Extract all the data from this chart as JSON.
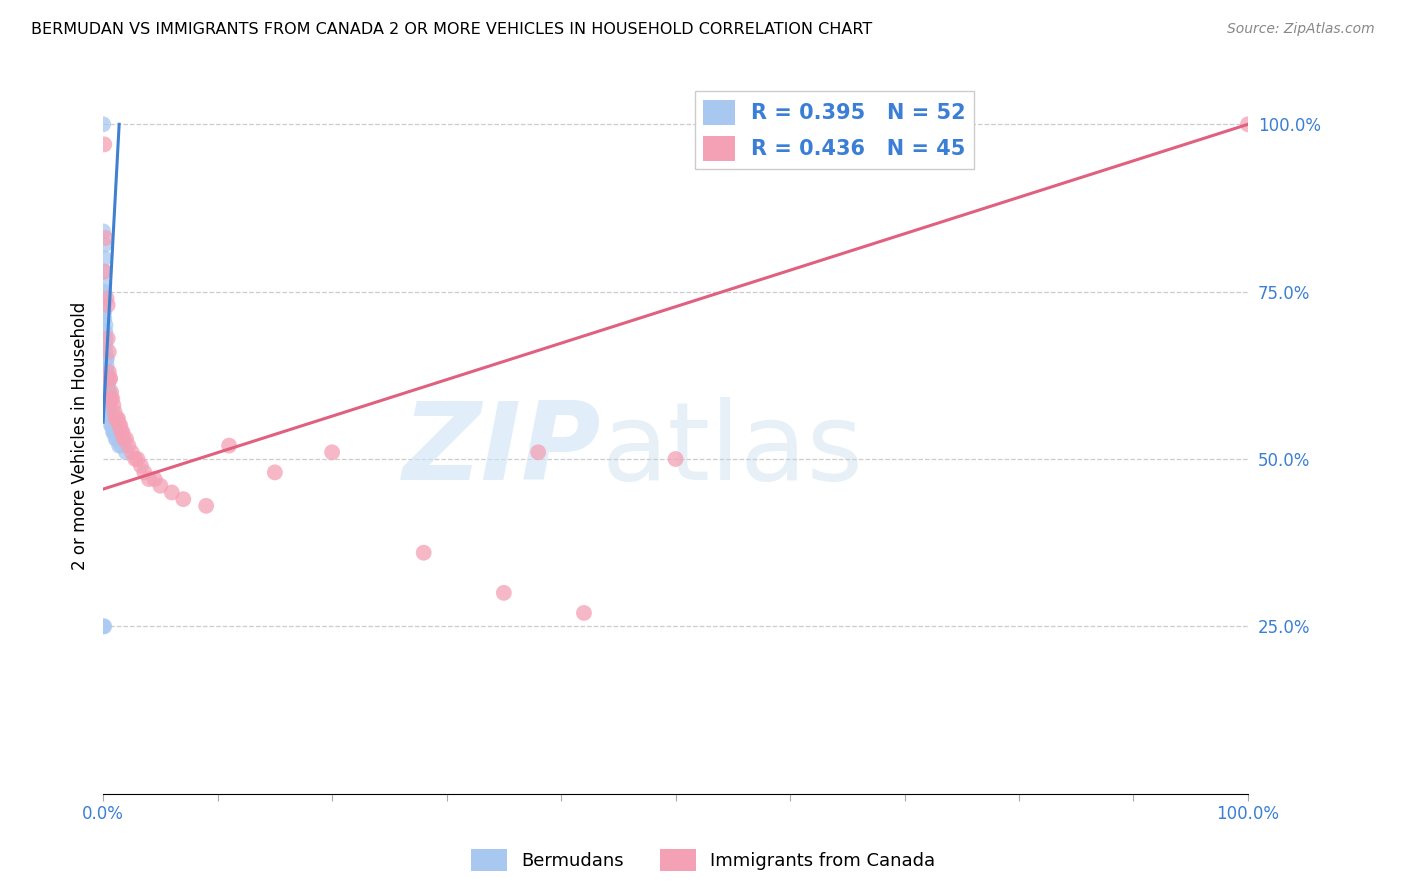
{
  "title": "BERMUDAN VS IMMIGRANTS FROM CANADA 2 OR MORE VEHICLES IN HOUSEHOLD CORRELATION CHART",
  "source": "Source: ZipAtlas.com",
  "ylabel": "2 or more Vehicles in Household",
  "legend_label1": "Bermudans",
  "legend_label2": "Immigrants from Canada",
  "R1": 0.395,
  "N1": 52,
  "R2": 0.436,
  "N2": 45,
  "color_blue": "#A8C8F0",
  "color_pink": "#F4A0B5",
  "line_color_blue": "#4080D0",
  "line_color_pink": "#E06080",
  "blue_x": [
    0.0,
    0.0,
    0.001,
    0.001,
    0.001,
    0.001,
    0.001,
    0.001,
    0.001,
    0.001,
    0.001,
    0.002,
    0.002,
    0.002,
    0.002,
    0.002,
    0.003,
    0.003,
    0.003,
    0.003,
    0.003,
    0.004,
    0.004,
    0.004,
    0.004,
    0.004,
    0.004,
    0.005,
    0.005,
    0.005,
    0.005,
    0.005,
    0.005,
    0.005,
    0.005,
    0.006,
    0.006,
    0.006,
    0.007,
    0.007,
    0.008,
    0.008,
    0.009,
    0.009,
    0.01,
    0.011,
    0.012,
    0.014,
    0.016,
    0.02,
    0.0,
    0.001
  ],
  "blue_y": [
    1.0,
    0.84,
    0.82,
    0.8,
    0.78,
    0.76,
    0.75,
    0.74,
    0.73,
    0.72,
    0.71,
    0.7,
    0.69,
    0.68,
    0.67,
    0.66,
    0.65,
    0.65,
    0.64,
    0.63,
    0.63,
    0.62,
    0.62,
    0.61,
    0.61,
    0.6,
    0.6,
    0.6,
    0.6,
    0.59,
    0.59,
    0.58,
    0.58,
    0.57,
    0.57,
    0.57,
    0.57,
    0.56,
    0.56,
    0.55,
    0.55,
    0.55,
    0.54,
    0.54,
    0.54,
    0.53,
    0.53,
    0.52,
    0.52,
    0.51,
    0.25,
    0.25
  ],
  "pink_x": [
    0.001,
    0.001,
    0.002,
    0.003,
    0.004,
    0.004,
    0.005,
    0.005,
    0.006,
    0.006,
    0.007,
    0.007,
    0.008,
    0.009,
    0.01,
    0.011,
    0.012,
    0.013,
    0.014,
    0.015,
    0.016,
    0.017,
    0.018,
    0.02,
    0.022,
    0.025,
    0.028,
    0.03,
    0.033,
    0.036,
    0.04,
    0.045,
    0.05,
    0.06,
    0.07,
    0.09,
    0.11,
    0.15,
    0.2,
    0.28,
    0.35,
    0.42,
    0.5,
    0.38,
    1.0
  ],
  "pink_y": [
    0.97,
    0.78,
    0.83,
    0.74,
    0.73,
    0.68,
    0.66,
    0.63,
    0.62,
    0.62,
    0.6,
    0.59,
    0.59,
    0.58,
    0.57,
    0.56,
    0.56,
    0.56,
    0.55,
    0.55,
    0.54,
    0.54,
    0.53,
    0.53,
    0.52,
    0.51,
    0.5,
    0.5,
    0.49,
    0.48,
    0.47,
    0.47,
    0.46,
    0.45,
    0.44,
    0.43,
    0.52,
    0.48,
    0.51,
    0.36,
    0.3,
    0.27,
    0.5,
    0.51,
    1.0
  ],
  "blue_line_x0": 0.0,
  "blue_line_y0": 0.555,
  "blue_line_x1": 0.014,
  "blue_line_y1": 1.0,
  "pink_line_x0": 0.0,
  "pink_line_y0": 0.455,
  "pink_line_x1": 1.0,
  "pink_line_y1": 1.0,
  "xlim": [
    0.0,
    1.0
  ],
  "ylim": [
    0.0,
    1.07
  ],
  "yticks": [
    0.25,
    0.5,
    0.75,
    1.0
  ],
  "ytick_labels": [
    "25.0%",
    "50.0%",
    "75.0%",
    "100.0%"
  ],
  "xtick_labels_show": [
    "0.0%",
    "100.0%"
  ]
}
